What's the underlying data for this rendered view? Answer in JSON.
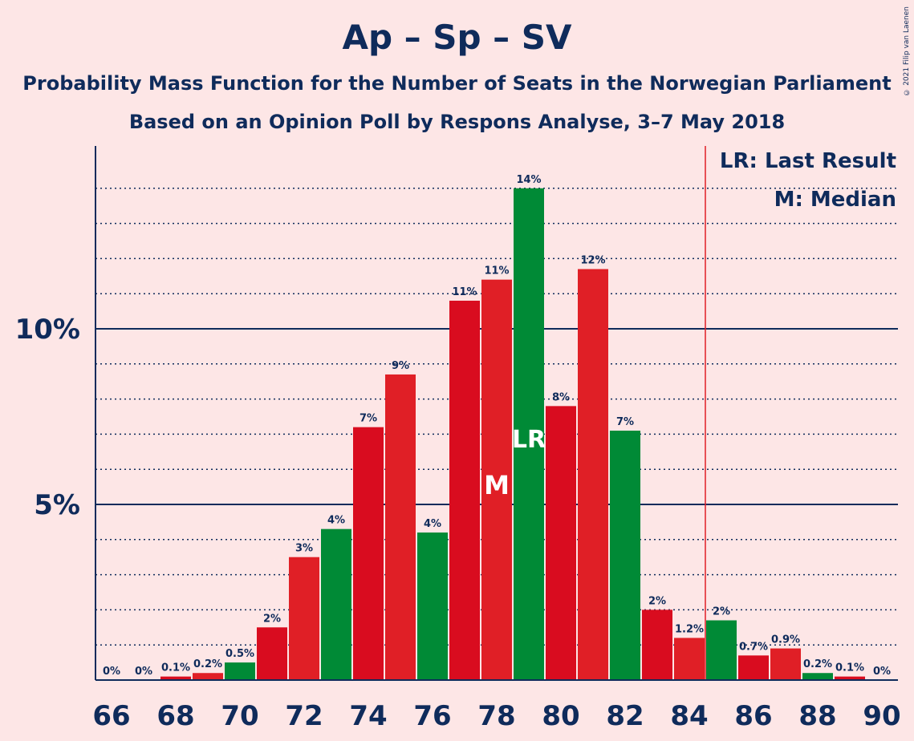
{
  "title": "Ap – Sp – SV",
  "subtitle1": "Probability Mass Function for the Number of Seats in the Norwegian Parliament",
  "subtitle2": "Based on an Opinion Poll by Respons Analyse, 3–7 May 2018",
  "legend": {
    "lr": "LR: Last Result",
    "m": "M: Median"
  },
  "copyright": "© 2021 Filip van Laenen",
  "colors": {
    "red": "#e01f26",
    "darkred": "#d90c1f",
    "green": "#008a36",
    "navy": "#0f2b5b",
    "lastResultLine": "#e01f26",
    "background": "#fde6e6"
  },
  "chart_data": {
    "type": "bar",
    "x": [
      66,
      67,
      68,
      69,
      70,
      71,
      72,
      73,
      74,
      75,
      76,
      77,
      78,
      79,
      80,
      81,
      82,
      83,
      84,
      85,
      86,
      87,
      88,
      89,
      90
    ],
    "values": [
      0,
      0,
      0.1,
      0.2,
      0.5,
      1.5,
      3.5,
      4.3,
      7.2,
      8.7,
      4.2,
      10.8,
      11.4,
      14.0,
      7.8,
      11.7,
      7.1,
      2.0,
      1.2,
      1.7,
      0.7,
      0.9,
      0.2,
      0.1,
      0
    ],
    "labels": [
      "0%",
      "0%",
      "0.1%",
      "0.2%",
      "0.5%",
      "2%",
      "3%",
      "4%",
      "7%",
      "9%",
      "4%",
      "11%",
      "11%",
      "14%",
      "8%",
      "12%",
      "7%",
      "2%",
      "1.2%",
      "2%",
      "0.7%",
      "0.9%",
      "0.2%",
      "0.1%",
      "0%"
    ],
    "bar_colors": [
      "red",
      "red",
      "darkred",
      "red",
      "green",
      "darkred",
      "red",
      "green",
      "darkred",
      "red",
      "green",
      "darkred",
      "red",
      "green",
      "darkred",
      "red",
      "green",
      "darkred",
      "red",
      "green",
      "darkred",
      "red",
      "green",
      "darkred",
      "red"
    ],
    "xticks": [
      66,
      68,
      70,
      72,
      74,
      76,
      78,
      80,
      82,
      84,
      86,
      88,
      90
    ],
    "xtick_labels": [
      "66",
      "68",
      "70",
      "72",
      "74",
      "76",
      "78",
      "80",
      "82",
      "84",
      "86",
      "88",
      "90"
    ],
    "yticks": [
      5,
      10
    ],
    "ytick_labels": [
      "5%",
      "10%"
    ],
    "ylim": [
      0,
      15
    ],
    "grid": true,
    "minor_grid_step": 1,
    "median": 78,
    "median_label": "M",
    "last_result": 79,
    "last_result_label": "LR",
    "last_result_line_x": 84.5,
    "legend_position": "top-right"
  }
}
